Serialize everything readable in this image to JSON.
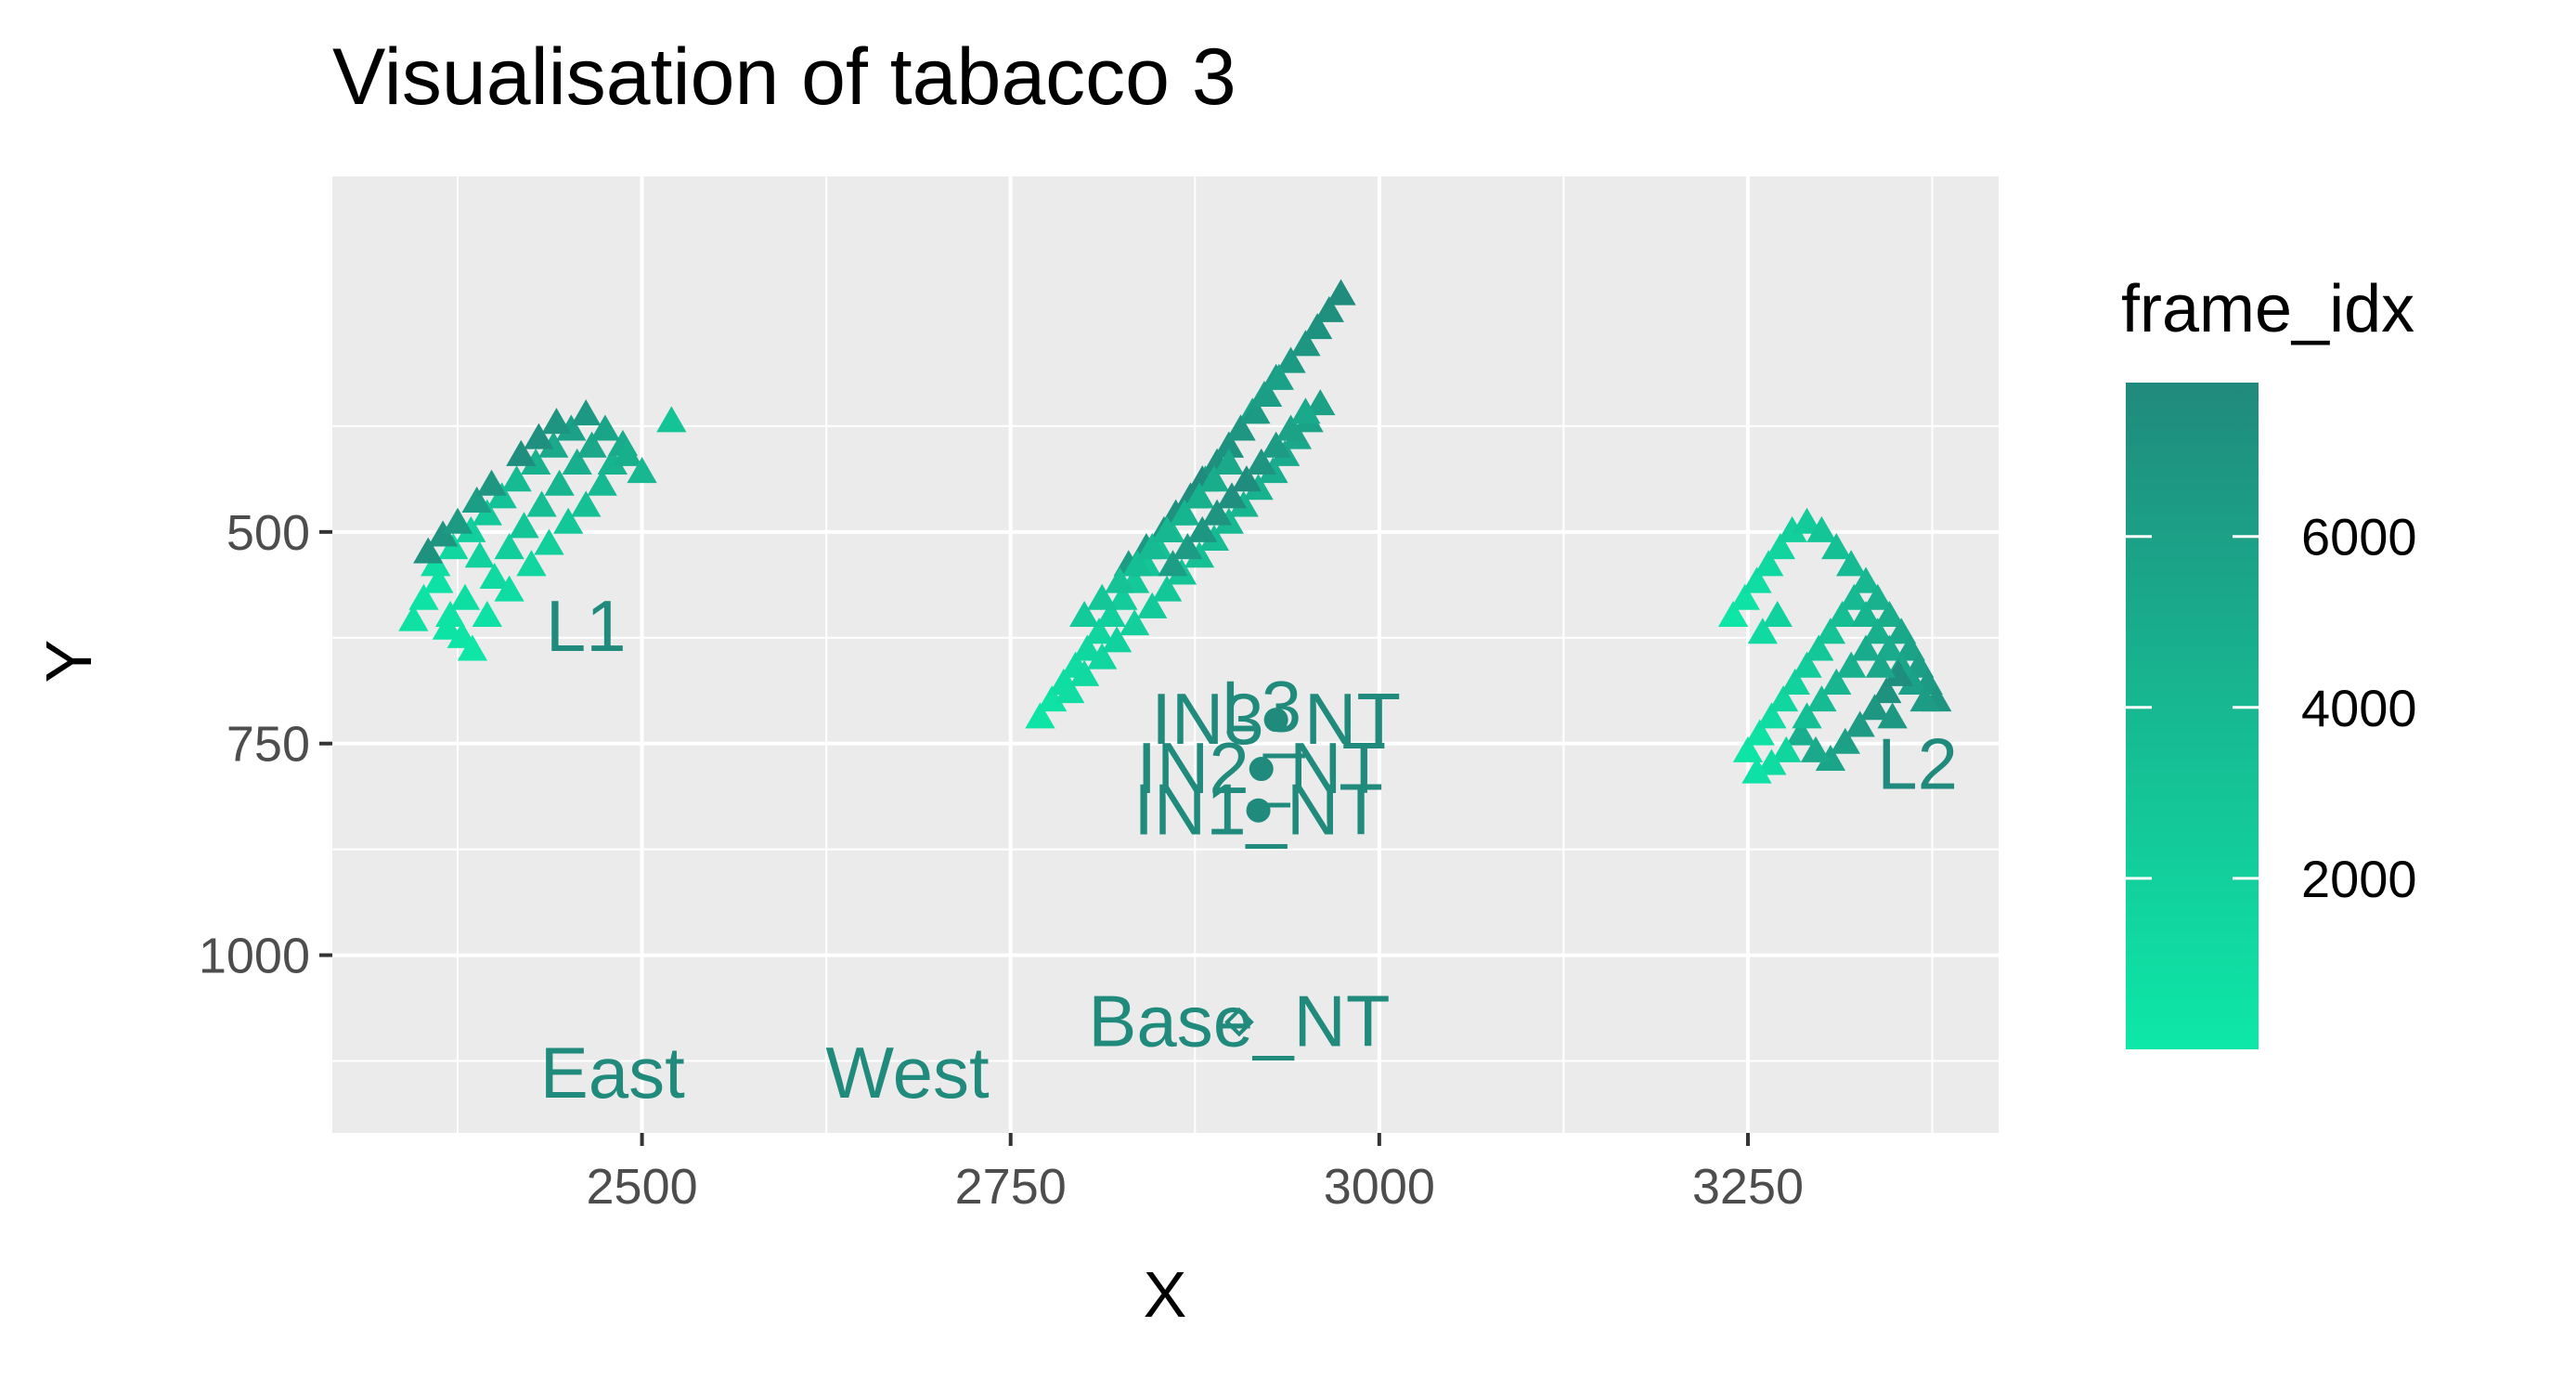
{
  "chart_data": {
    "type": "scatter",
    "title": "Visualisation of tabacco  3",
    "xlabel": "X",
    "ylabel": "Y",
    "xlim": [
      2290,
      3420
    ],
    "ylim": [
      1210,
      80
    ],
    "y_reversed": true,
    "grid": true,
    "x_ticks": [
      2500,
      2750,
      3000,
      3250
    ],
    "y_ticks": [
      500,
      750,
      1000
    ],
    "legend": {
      "title": "frame_idx",
      "position": "right",
      "ticks": [
        2000,
        4000,
        6000
      ],
      "range": [
        0,
        7800
      ],
      "color_low": "#0de8a8",
      "color_high": "#208a7c"
    },
    "label_color": "#208a7c",
    "track_points": [
      {
        "x": 2352,
        "y": 580,
        "f": 400
      },
      {
        "x": 2362,
        "y": 560,
        "f": 600
      },
      {
        "x": 2370,
        "y": 600,
        "f": 500
      },
      {
        "x": 2378,
        "y": 625,
        "f": 300
      },
      {
        "x": 2385,
        "y": 640,
        "f": 200
      },
      {
        "x": 2360,
        "y": 540,
        "f": 900
      },
      {
        "x": 2372,
        "y": 520,
        "f": 1400
      },
      {
        "x": 2384,
        "y": 500,
        "f": 2000
      },
      {
        "x": 2395,
        "y": 480,
        "f": 2600
      },
      {
        "x": 2405,
        "y": 460,
        "f": 3200
      },
      {
        "x": 2415,
        "y": 440,
        "f": 3800
      },
      {
        "x": 2428,
        "y": 420,
        "f": 4500
      },
      {
        "x": 2440,
        "y": 400,
        "f": 5200
      },
      {
        "x": 2452,
        "y": 380,
        "f": 5900
      },
      {
        "x": 2462,
        "y": 362,
        "f": 6600
      },
      {
        "x": 2355,
        "y": 525,
        "f": 7200
      },
      {
        "x": 2365,
        "y": 505,
        "f": 7000
      },
      {
        "x": 2375,
        "y": 490,
        "f": 6500
      },
      {
        "x": 2390,
        "y": 530,
        "f": 1800
      },
      {
        "x": 2400,
        "y": 555,
        "f": 1200
      },
      {
        "x": 2410,
        "y": 520,
        "f": 2200
      },
      {
        "x": 2420,
        "y": 495,
        "f": 2900
      },
      {
        "x": 2432,
        "y": 470,
        "f": 3500
      },
      {
        "x": 2444,
        "y": 445,
        "f": 4200
      },
      {
        "x": 2456,
        "y": 420,
        "f": 4800
      },
      {
        "x": 2466,
        "y": 400,
        "f": 5400
      },
      {
        "x": 2380,
        "y": 580,
        "f": 800
      },
      {
        "x": 2395,
        "y": 600,
        "f": 600
      },
      {
        "x": 2410,
        "y": 570,
        "f": 1000
      },
      {
        "x": 2425,
        "y": 540,
        "f": 1500
      },
      {
        "x": 2437,
        "y": 515,
        "f": 2100
      },
      {
        "x": 2450,
        "y": 490,
        "f": 2700
      },
      {
        "x": 2462,
        "y": 470,
        "f": 3300
      },
      {
        "x": 2473,
        "y": 445,
        "f": 3900
      },
      {
        "x": 2480,
        "y": 420,
        "f": 4400
      },
      {
        "x": 2487,
        "y": 398,
        "f": 5000
      },
      {
        "x": 2475,
        "y": 380,
        "f": 5600
      },
      {
        "x": 2490,
        "y": 410,
        "f": 4700
      },
      {
        "x": 2500,
        "y": 430,
        "f": 4100
      },
      {
        "x": 2520,
        "y": 370,
        "f": 3000
      },
      {
        "x": 2345,
        "y": 605,
        "f": 700
      },
      {
        "x": 2368,
        "y": 615,
        "f": 400
      },
      {
        "x": 2388,
        "y": 465,
        "f": 6100
      },
      {
        "x": 2398,
        "y": 445,
        "f": 6800
      },
      {
        "x": 2418,
        "y": 410,
        "f": 7500
      },
      {
        "x": 2430,
        "y": 390,
        "f": 7300
      },
      {
        "x": 2442,
        "y": 372,
        "f": 6900
      },
      {
        "x": 2770,
        "y": 720,
        "f": 300
      },
      {
        "x": 2778,
        "y": 700,
        "f": 500
      },
      {
        "x": 2786,
        "y": 680,
        "f": 800
      },
      {
        "x": 2794,
        "y": 660,
        "f": 1100
      },
      {
        "x": 2802,
        "y": 640,
        "f": 1400
      },
      {
        "x": 2810,
        "y": 620,
        "f": 1700
      },
      {
        "x": 2818,
        "y": 600,
        "f": 2000
      },
      {
        "x": 2826,
        "y": 580,
        "f": 2300
      },
      {
        "x": 2834,
        "y": 560,
        "f": 2600
      },
      {
        "x": 2842,
        "y": 540,
        "f": 2900
      },
      {
        "x": 2850,
        "y": 520,
        "f": 3200
      },
      {
        "x": 2858,
        "y": 500,
        "f": 3500
      },
      {
        "x": 2866,
        "y": 480,
        "f": 3800
      },
      {
        "x": 2874,
        "y": 460,
        "f": 4100
      },
      {
        "x": 2882,
        "y": 440,
        "f": 4400
      },
      {
        "x": 2890,
        "y": 420,
        "f": 4700
      },
      {
        "x": 2898,
        "y": 400,
        "f": 5000
      },
      {
        "x": 2906,
        "y": 380,
        "f": 5300
      },
      {
        "x": 2914,
        "y": 360,
        "f": 5600
      },
      {
        "x": 2922,
        "y": 340,
        "f": 5900
      },
      {
        "x": 2930,
        "y": 320,
        "f": 6200
      },
      {
        "x": 2940,
        "y": 300,
        "f": 6500
      },
      {
        "x": 2950,
        "y": 280,
        "f": 6800
      },
      {
        "x": 2958,
        "y": 260,
        "f": 7100
      },
      {
        "x": 2966,
        "y": 240,
        "f": 7400
      },
      {
        "x": 2974,
        "y": 220,
        "f": 7600
      },
      {
        "x": 2790,
        "y": 690,
        "f": 900
      },
      {
        "x": 2800,
        "y": 670,
        "f": 1200
      },
      {
        "x": 2812,
        "y": 650,
        "f": 1500
      },
      {
        "x": 2822,
        "y": 630,
        "f": 1800
      },
      {
        "x": 2834,
        "y": 610,
        "f": 2100
      },
      {
        "x": 2846,
        "y": 590,
        "f": 2400
      },
      {
        "x": 2856,
        "y": 570,
        "f": 2700
      },
      {
        "x": 2866,
        "y": 550,
        "f": 3000
      },
      {
        "x": 2878,
        "y": 530,
        "f": 3300
      },
      {
        "x": 2888,
        "y": 510,
        "f": 3600
      },
      {
        "x": 2898,
        "y": 490,
        "f": 3900
      },
      {
        "x": 2908,
        "y": 470,
        "f": 4200
      },
      {
        "x": 2918,
        "y": 450,
        "f": 4500
      },
      {
        "x": 2928,
        "y": 430,
        "f": 4800
      },
      {
        "x": 2936,
        "y": 410,
        "f": 5100
      },
      {
        "x": 2944,
        "y": 390,
        "f": 5400
      },
      {
        "x": 2952,
        "y": 370,
        "f": 5700
      },
      {
        "x": 2960,
        "y": 350,
        "f": 6000
      },
      {
        "x": 2830,
        "y": 540,
        "f": 6300
      },
      {
        "x": 2842,
        "y": 520,
        "f": 6600
      },
      {
        "x": 2854,
        "y": 500,
        "f": 6900
      },
      {
        "x": 2862,
        "y": 480,
        "f": 7200
      },
      {
        "x": 2872,
        "y": 460,
        "f": 7500
      },
      {
        "x": 2880,
        "y": 440,
        "f": 7700
      },
      {
        "x": 2890,
        "y": 420,
        "f": 7400
      },
      {
        "x": 2898,
        "y": 400,
        "f": 7100
      },
      {
        "x": 2906,
        "y": 380,
        "f": 6800
      },
      {
        "x": 2916,
        "y": 360,
        "f": 6500
      },
      {
        "x": 2924,
        "y": 340,
        "f": 6200
      },
      {
        "x": 2932,
        "y": 320,
        "f": 5900
      },
      {
        "x": 2800,
        "y": 600,
        "f": 2500
      },
      {
        "x": 2812,
        "y": 580,
        "f": 2800
      },
      {
        "x": 2824,
        "y": 560,
        "f": 3100
      },
      {
        "x": 2836,
        "y": 540,
        "f": 3400
      },
      {
        "x": 2846,
        "y": 520,
        "f": 3700
      },
      {
        "x": 2856,
        "y": 500,
        "f": 4000
      },
      {
        "x": 2868,
        "y": 480,
        "f": 4300
      },
      {
        "x": 2878,
        "y": 460,
        "f": 4600
      },
      {
        "x": 2888,
        "y": 440,
        "f": 4900
      },
      {
        "x": 2898,
        "y": 420,
        "f": 5200
      },
      {
        "x": 2860,
        "y": 540,
        "f": 6100
      },
      {
        "x": 2870,
        "y": 520,
        "f": 6400
      },
      {
        "x": 2880,
        "y": 500,
        "f": 6700
      },
      {
        "x": 2890,
        "y": 480,
        "f": 7000
      },
      {
        "x": 2900,
        "y": 460,
        "f": 7300
      },
      {
        "x": 2910,
        "y": 440,
        "f": 7600
      },
      {
        "x": 2920,
        "y": 420,
        "f": 7000
      },
      {
        "x": 2930,
        "y": 400,
        "f": 6400
      },
      {
        "x": 2940,
        "y": 380,
        "f": 5800
      },
      {
        "x": 2950,
        "y": 360,
        "f": 5200
      },
      {
        "x": 3240,
        "y": 600,
        "f": 200
      },
      {
        "x": 3248,
        "y": 580,
        "f": 500
      },
      {
        "x": 3256,
        "y": 560,
        "f": 900
      },
      {
        "x": 3264,
        "y": 540,
        "f": 1300
      },
      {
        "x": 3272,
        "y": 520,
        "f": 1700
      },
      {
        "x": 3280,
        "y": 500,
        "f": 2100
      },
      {
        "x": 3290,
        "y": 490,
        "f": 2500
      },
      {
        "x": 3300,
        "y": 500,
        "f": 2900
      },
      {
        "x": 3310,
        "y": 520,
        "f": 3300
      },
      {
        "x": 3320,
        "y": 540,
        "f": 3700
      },
      {
        "x": 3330,
        "y": 560,
        "f": 4100
      },
      {
        "x": 3338,
        "y": 580,
        "f": 4500
      },
      {
        "x": 3346,
        "y": 600,
        "f": 4900
      },
      {
        "x": 3354,
        "y": 620,
        "f": 5300
      },
      {
        "x": 3360,
        "y": 640,
        "f": 5700
      },
      {
        "x": 3366,
        "y": 660,
        "f": 6100
      },
      {
        "x": 3372,
        "y": 680,
        "f": 6500
      },
      {
        "x": 3378,
        "y": 700,
        "f": 6900
      },
      {
        "x": 3250,
        "y": 760,
        "f": 300
      },
      {
        "x": 3258,
        "y": 740,
        "f": 700
      },
      {
        "x": 3266,
        "y": 720,
        "f": 1100
      },
      {
        "x": 3274,
        "y": 700,
        "f": 1500
      },
      {
        "x": 3282,
        "y": 680,
        "f": 1900
      },
      {
        "x": 3290,
        "y": 660,
        "f": 2300
      },
      {
        "x": 3298,
        "y": 640,
        "f": 2700
      },
      {
        "x": 3306,
        "y": 620,
        "f": 3100
      },
      {
        "x": 3314,
        "y": 600,
        "f": 3500
      },
      {
        "x": 3322,
        "y": 580,
        "f": 3900
      },
      {
        "x": 3330,
        "y": 600,
        "f": 4300
      },
      {
        "x": 3338,
        "y": 620,
        "f": 4700
      },
      {
        "x": 3346,
        "y": 640,
        "f": 5100
      },
      {
        "x": 3354,
        "y": 660,
        "f": 5500
      },
      {
        "x": 3362,
        "y": 680,
        "f": 5900
      },
      {
        "x": 3370,
        "y": 700,
        "f": 6300
      },
      {
        "x": 3344,
        "y": 690,
        "f": 7200
      },
      {
        "x": 3352,
        "y": 670,
        "f": 7500
      },
      {
        "x": 3336,
        "y": 710,
        "f": 6800
      },
      {
        "x": 3326,
        "y": 730,
        "f": 6400
      },
      {
        "x": 3316,
        "y": 750,
        "f": 6000
      },
      {
        "x": 3306,
        "y": 770,
        "f": 5600
      },
      {
        "x": 3296,
        "y": 760,
        "f": 5200
      },
      {
        "x": 3286,
        "y": 740,
        "f": 4800
      },
      {
        "x": 3276,
        "y": 760,
        "f": 1600
      },
      {
        "x": 3266,
        "y": 775,
        "f": 1000
      },
      {
        "x": 3256,
        "y": 785,
        "f": 600
      },
      {
        "x": 3290,
        "y": 720,
        "f": 3400
      },
      {
        "x": 3300,
        "y": 700,
        "f": 3800
      },
      {
        "x": 3310,
        "y": 680,
        "f": 4200
      },
      {
        "x": 3320,
        "y": 660,
        "f": 4600
      },
      {
        "x": 3330,
        "y": 640,
        "f": 5000
      },
      {
        "x": 3340,
        "y": 660,
        "f": 5400
      },
      {
        "x": 3348,
        "y": 720,
        "f": 6600
      },
      {
        "x": 3260,
        "y": 620,
        "f": 1200
      },
      {
        "x": 3270,
        "y": 600,
        "f": 1800
      }
    ],
    "positions": [
      {
        "name": "L1",
        "x": 2462,
        "y": 612,
        "marker": "none"
      },
      {
        "name": "L2",
        "x": 3365,
        "y": 775,
        "marker": "none"
      },
      {
        "name": "IN3_NT",
        "x": 2930,
        "y": 722,
        "marker": "dot"
      },
      {
        "name": "L3",
        "x": 2920,
        "y": 707,
        "marker": "none"
      },
      {
        "name": "IN2_NT",
        "x": 2920,
        "y": 780,
        "marker": "dot"
      },
      {
        "name": "IN1_NT",
        "x": 2918,
        "y": 829,
        "marker": "dot"
      },
      {
        "name": "Base_NT",
        "x": 2905,
        "y": 1079,
        "marker": "open-diamond"
      },
      {
        "name": "East",
        "x": 2480,
        "y": 1140,
        "marker": "none"
      },
      {
        "name": "West",
        "x": 2680,
        "y": 1140,
        "marker": "none"
      }
    ]
  }
}
